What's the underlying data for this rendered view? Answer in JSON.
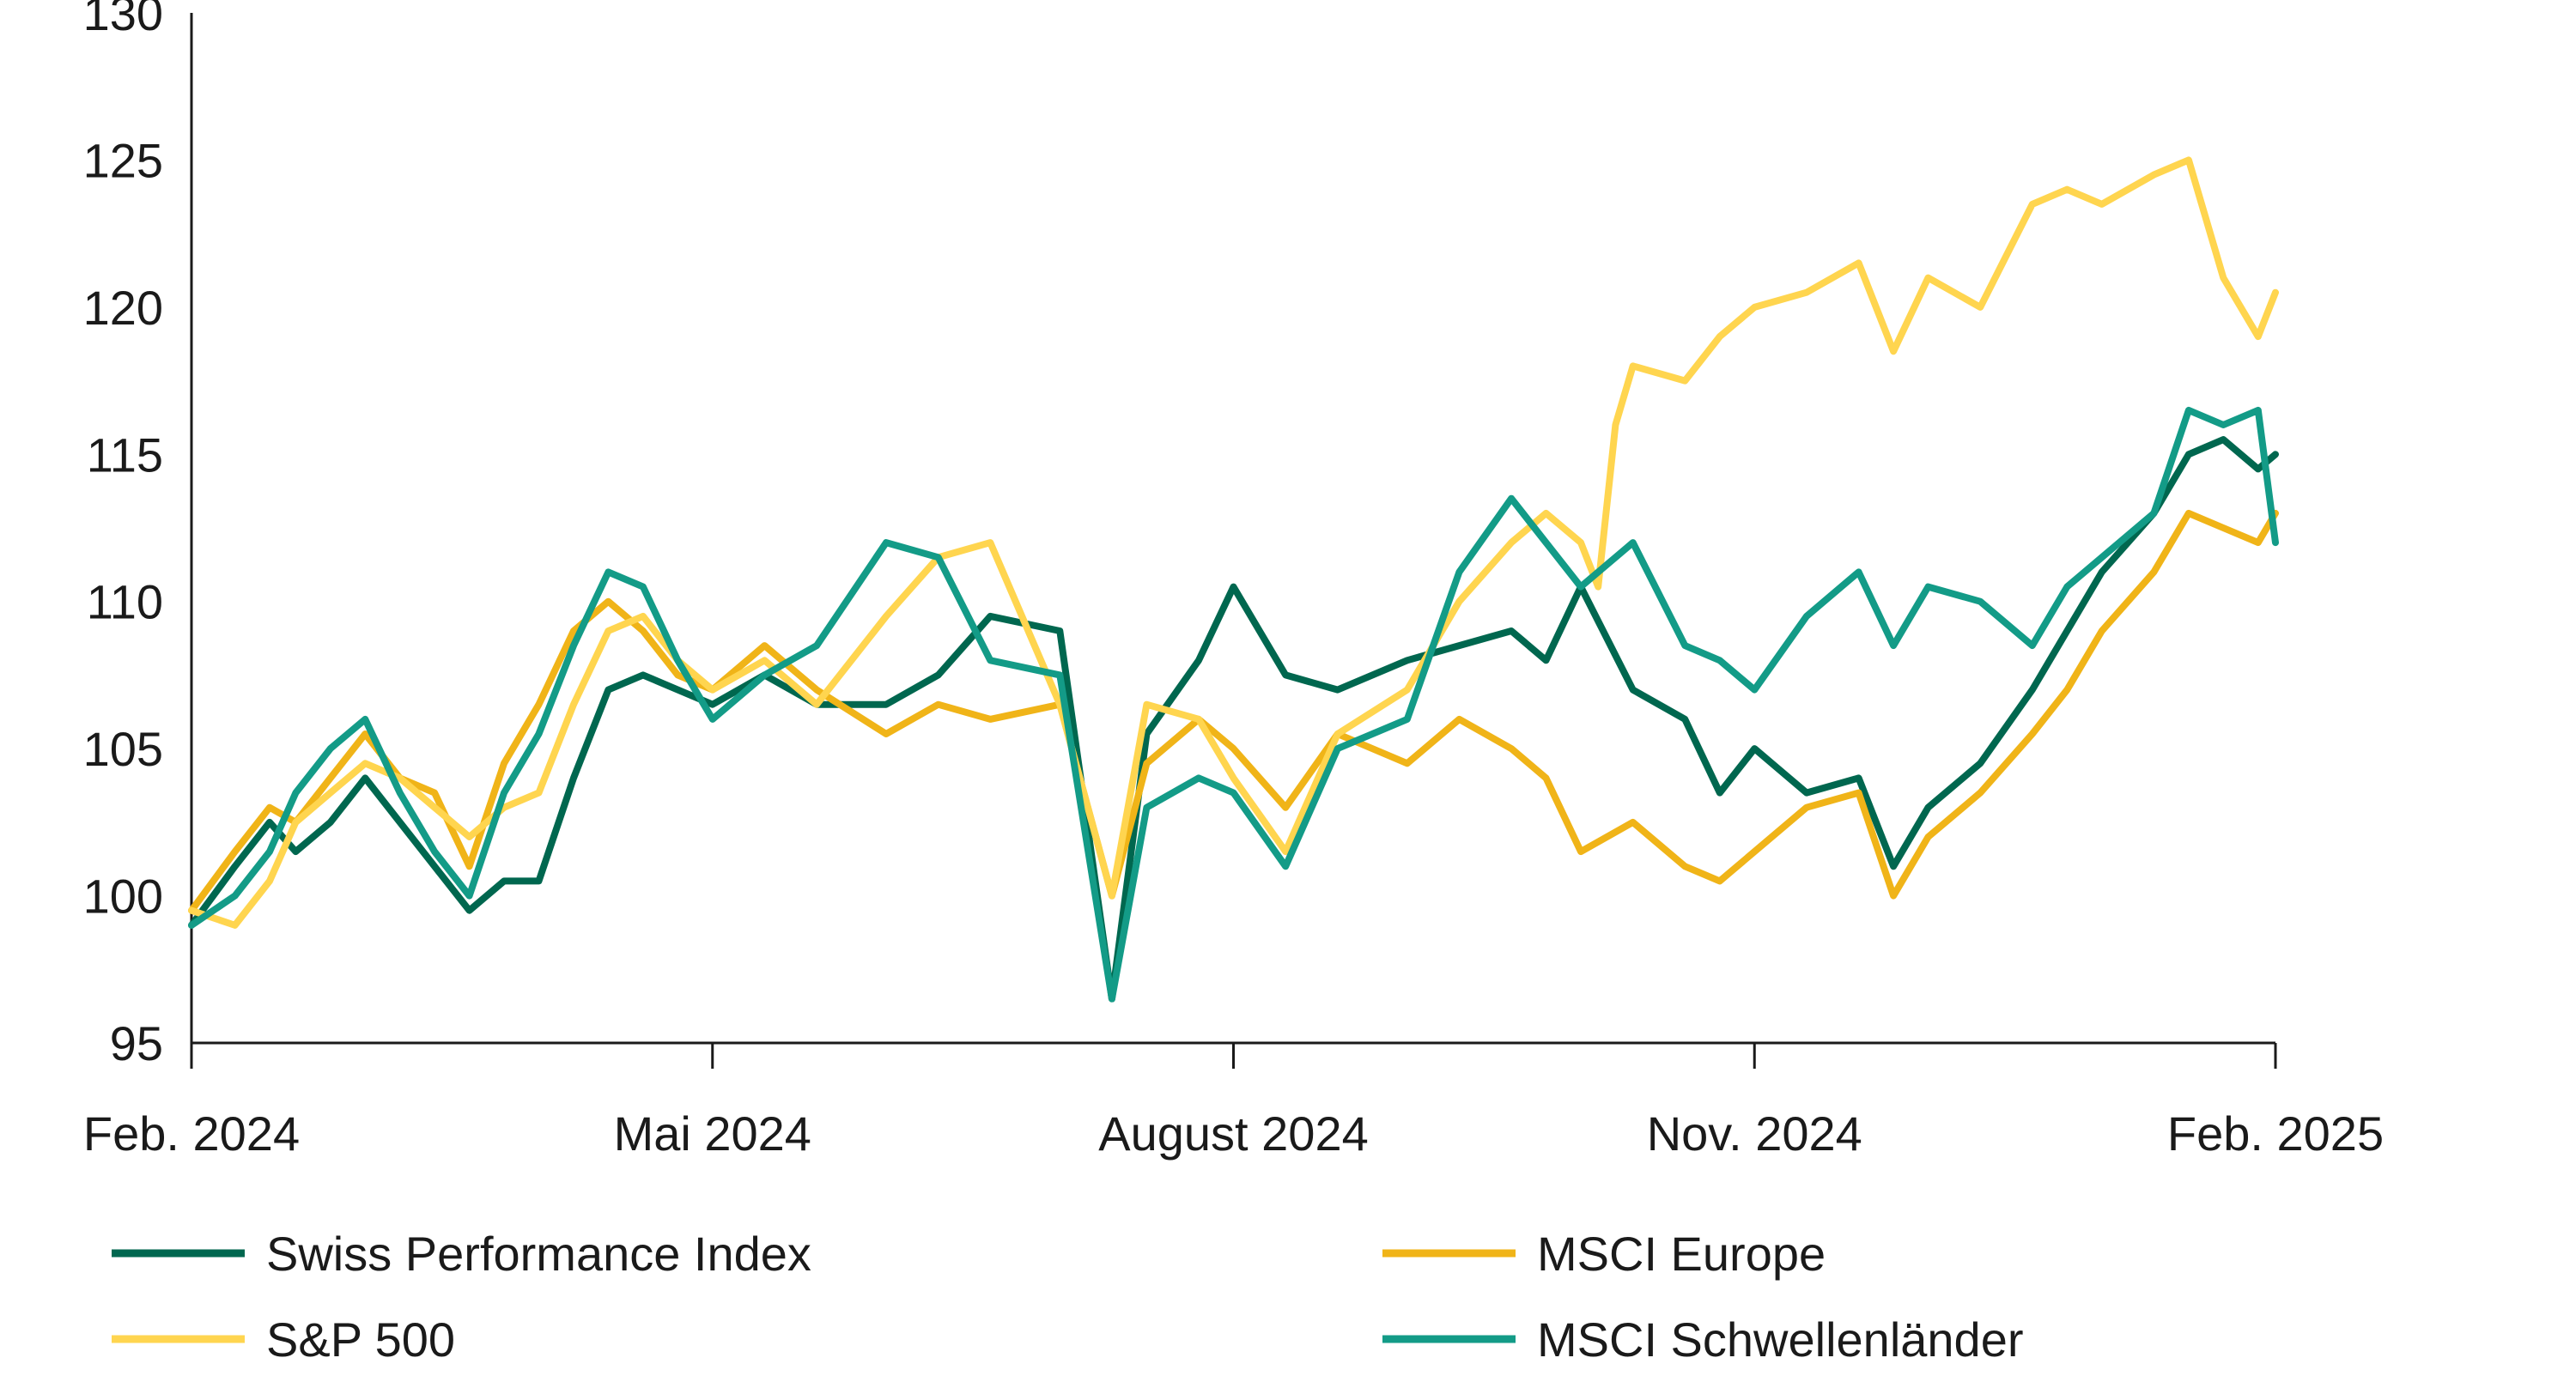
{
  "chart_data": {
    "type": "line",
    "title": "",
    "xlabel": "",
    "ylabel": "",
    "ylim": [
      95,
      130
    ],
    "yticks": [
      95,
      100,
      105,
      110,
      115,
      120,
      125,
      130
    ],
    "xlim": [
      0,
      12
    ],
    "xticks": [
      {
        "pos": 0,
        "label": "Feb. 2024"
      },
      {
        "pos": 3,
        "label": "Mai 2024"
      },
      {
        "pos": 6,
        "label": "August 2024"
      },
      {
        "pos": 9,
        "label": "Nov. 2024"
      },
      {
        "pos": 12,
        "label": "Feb. 2025"
      }
    ],
    "x_unit": "months since Feb. 2024",
    "legend_position": "bottom",
    "grid": false,
    "series": [
      {
        "name": "Swiss Performance Index",
        "color": "#00674F",
        "x": [
          0,
          0.25,
          0.45,
          0.6,
          0.8,
          1.0,
          1.2,
          1.4,
          1.6,
          1.8,
          2.0,
          2.2,
          2.4,
          2.6,
          2.8,
          3.0,
          3.3,
          3.6,
          4.0,
          4.3,
          4.6,
          5.0,
          5.3,
          5.5,
          5.8,
          6.0,
          6.3,
          6.6,
          7.0,
          7.3,
          7.6,
          7.8,
          8.0,
          8.3,
          8.6,
          8.8,
          9.0,
          9.3,
          9.6,
          9.8,
          10.0,
          10.3,
          10.6,
          10.8,
          11.0,
          11.3,
          11.5,
          11.7,
          11.9,
          12.0
        ],
        "values": [
          99.0,
          101.0,
          102.5,
          101.5,
          102.5,
          104.0,
          102.5,
          101.0,
          99.5,
          100.5,
          100.5,
          104.0,
          107.0,
          107.5,
          107.0,
          106.5,
          107.5,
          106.5,
          106.5,
          107.5,
          109.5,
          109.0,
          96.5,
          105.5,
          108.0,
          110.5,
          107.5,
          107.0,
          108.0,
          108.5,
          109.0,
          108.0,
          110.5,
          107.0,
          106.0,
          103.5,
          105.0,
          103.5,
          104.0,
          101.0,
          103.0,
          104.5,
          107.0,
          109.0,
          111.0,
          113.0,
          115.0,
          115.5,
          114.5,
          115.0
        ]
      },
      {
        "name": "MSCI Europe",
        "color": "#F0B418",
        "x": [
          0,
          0.25,
          0.45,
          0.6,
          0.8,
          1.0,
          1.2,
          1.4,
          1.6,
          1.8,
          2.0,
          2.2,
          2.4,
          2.6,
          2.8,
          3.0,
          3.3,
          3.6,
          4.0,
          4.3,
          4.6,
          5.0,
          5.3,
          5.5,
          5.8,
          6.0,
          6.3,
          6.6,
          7.0,
          7.3,
          7.6,
          7.8,
          8.0,
          8.3,
          8.6,
          8.8,
          9.0,
          9.3,
          9.6,
          9.8,
          10.0,
          10.3,
          10.6,
          10.8,
          11.0,
          11.3,
          11.5,
          11.7,
          11.9,
          12.0
        ],
        "values": [
          99.5,
          101.5,
          103.0,
          102.5,
          104.0,
          105.5,
          104.0,
          103.5,
          101.0,
          104.5,
          106.5,
          109.0,
          110.0,
          109.0,
          107.5,
          107.0,
          108.5,
          107.0,
          105.5,
          106.5,
          106.0,
          106.5,
          100.0,
          104.5,
          106.0,
          105.0,
          103.0,
          105.5,
          104.5,
          106.0,
          105.0,
          104.0,
          101.5,
          102.5,
          101.0,
          100.5,
          101.5,
          103.0,
          103.5,
          100.0,
          102.0,
          103.5,
          105.5,
          107.0,
          109.0,
          111.0,
          113.0,
          112.5,
          112.0,
          113.0
        ]
      },
      {
        "name": "S&P 500",
        "color": "#FFD54F",
        "x": [
          0,
          0.25,
          0.45,
          0.6,
          0.8,
          1.0,
          1.2,
          1.4,
          1.6,
          1.8,
          2.0,
          2.2,
          2.4,
          2.6,
          2.8,
          3.0,
          3.3,
          3.6,
          4.0,
          4.3,
          4.6,
          5.0,
          5.3,
          5.5,
          5.8,
          6.0,
          6.3,
          6.6,
          7.0,
          7.3,
          7.6,
          7.8,
          8.0,
          8.1,
          8.2,
          8.3,
          8.6,
          8.8,
          9.0,
          9.3,
          9.6,
          9.8,
          10.0,
          10.3,
          10.6,
          10.8,
          11.0,
          11.3,
          11.5,
          11.7,
          11.9,
          12.0
        ],
        "values": [
          99.5,
          99.0,
          100.5,
          102.5,
          103.5,
          104.5,
          104.0,
          103.0,
          102.0,
          103.0,
          103.5,
          106.5,
          109.0,
          109.5,
          108.0,
          107.0,
          108.0,
          106.5,
          109.5,
          111.5,
          112.0,
          106.5,
          100.0,
          106.5,
          106.0,
          104.0,
          101.5,
          105.5,
          107.0,
          110.0,
          112.0,
          113.0,
          112.0,
          110.5,
          116.0,
          118.0,
          117.5,
          119.0,
          120.0,
          120.5,
          121.5,
          118.5,
          121.0,
          120.0,
          123.5,
          124.0,
          123.5,
          124.5,
          125.0,
          121.0,
          119.0,
          120.5
        ]
      },
      {
        "name": "MSCI Schwellenländer",
        "color": "#139B87",
        "x": [
          0,
          0.25,
          0.45,
          0.6,
          0.8,
          1.0,
          1.2,
          1.4,
          1.6,
          1.8,
          2.0,
          2.2,
          2.4,
          2.6,
          2.8,
          3.0,
          3.3,
          3.6,
          4.0,
          4.3,
          4.6,
          5.0,
          5.3,
          5.5,
          5.8,
          6.0,
          6.3,
          6.6,
          7.0,
          7.3,
          7.6,
          7.8,
          8.0,
          8.3,
          8.6,
          8.8,
          9.0,
          9.3,
          9.6,
          9.8,
          10.0,
          10.3,
          10.6,
          10.8,
          11.0,
          11.3,
          11.5,
          11.7,
          11.9,
          12.0
        ],
        "values": [
          99.0,
          100.0,
          101.5,
          103.5,
          105.0,
          106.0,
          103.5,
          101.5,
          100.0,
          103.5,
          105.5,
          108.5,
          111.0,
          110.5,
          108.0,
          106.0,
          107.5,
          108.5,
          112.0,
          111.5,
          108.0,
          107.5,
          96.5,
          103.0,
          104.0,
          103.5,
          101.0,
          105.0,
          106.0,
          111.0,
          113.5,
          112.0,
          110.5,
          112.0,
          108.5,
          108.0,
          107.0,
          109.5,
          111.0,
          108.5,
          110.5,
          110.0,
          108.5,
          110.5,
          111.5,
          113.0,
          116.5,
          116.0,
          116.5,
          112.0
        ]
      }
    ]
  }
}
